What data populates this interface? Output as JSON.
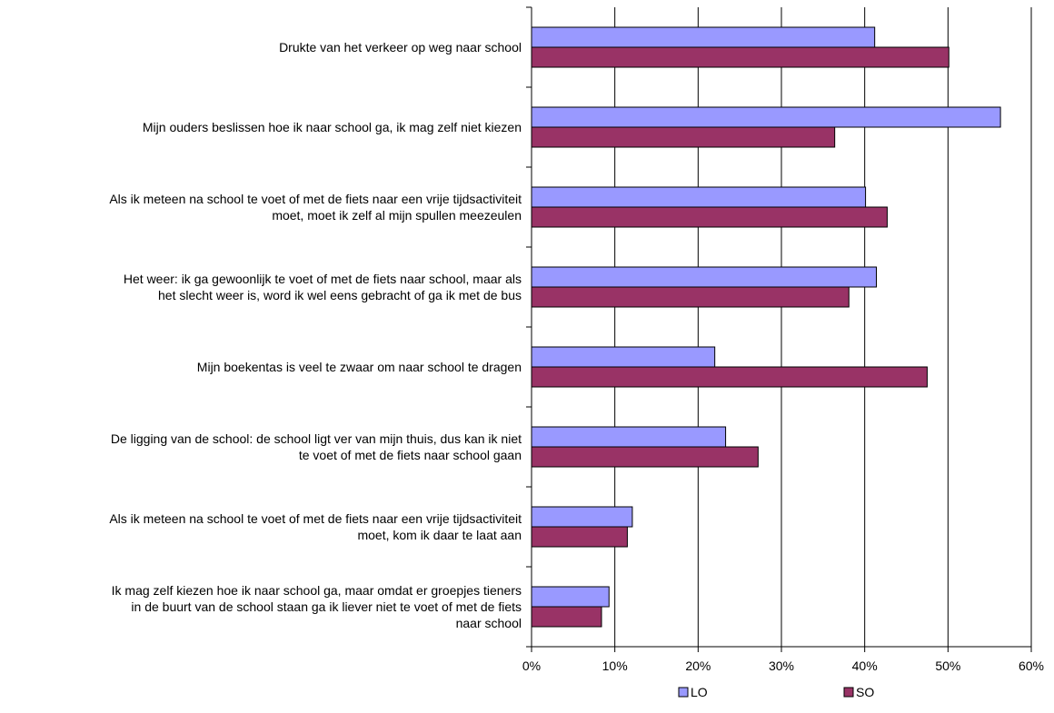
{
  "chart_data": {
    "type": "bar",
    "orientation": "horizontal",
    "title": "",
    "xlabel": "",
    "ylabel": "",
    "xlim": [
      0,
      60
    ],
    "tick_values": [
      0,
      10,
      20,
      30,
      40,
      50,
      60
    ],
    "tick_labels": [
      "0%",
      "10%",
      "20%",
      "30%",
      "40%",
      "50%",
      "60%"
    ],
    "grid": "vertical",
    "legend_position": "bottom",
    "categories": [
      [
        "Drukte van het verkeer op weg naar school"
      ],
      [
        "Mijn ouders beslissen hoe ik naar school ga, ik mag zelf niet kiezen"
      ],
      [
        "Als ik meteen na school te voet of met de fiets naar een vrije tijdsactiviteit",
        "moet, moet ik zelf al mijn spullen meezeulen"
      ],
      [
        "Het weer: ik ga gewoonlijk te voet of met de fiets naar school, maar als",
        "het slecht weer is, word ik wel eens gebracht of ga ik met de bus"
      ],
      [
        "Mijn boekentas is veel te zwaar om naar school te dragen"
      ],
      [
        "De ligging van de school: de school ligt ver van mijn thuis, dus kan ik niet",
        "te voet of met de fiets naar school gaan"
      ],
      [
        "Als ik meteen na school te voet of met de fiets naar een vrije tijdsactiviteit",
        "moet, kom ik daar te laat aan"
      ],
      [
        "Ik mag zelf kiezen hoe ik naar school ga, maar omdat er groepjes tieners",
        "in de buurt van de school staan ga ik liever niet te voet of met de fiets",
        "naar school"
      ]
    ],
    "series": [
      {
        "name": "LO",
        "color": "#9999ff",
        "values": [
          41.2,
          56.3,
          40.1,
          41.4,
          22.0,
          23.3,
          12.1,
          9.3
        ]
      },
      {
        "name": "SO",
        "color": "#993366",
        "values": [
          50.1,
          36.4,
          42.7,
          38.1,
          47.5,
          27.2,
          11.5,
          8.4
        ]
      }
    ]
  }
}
